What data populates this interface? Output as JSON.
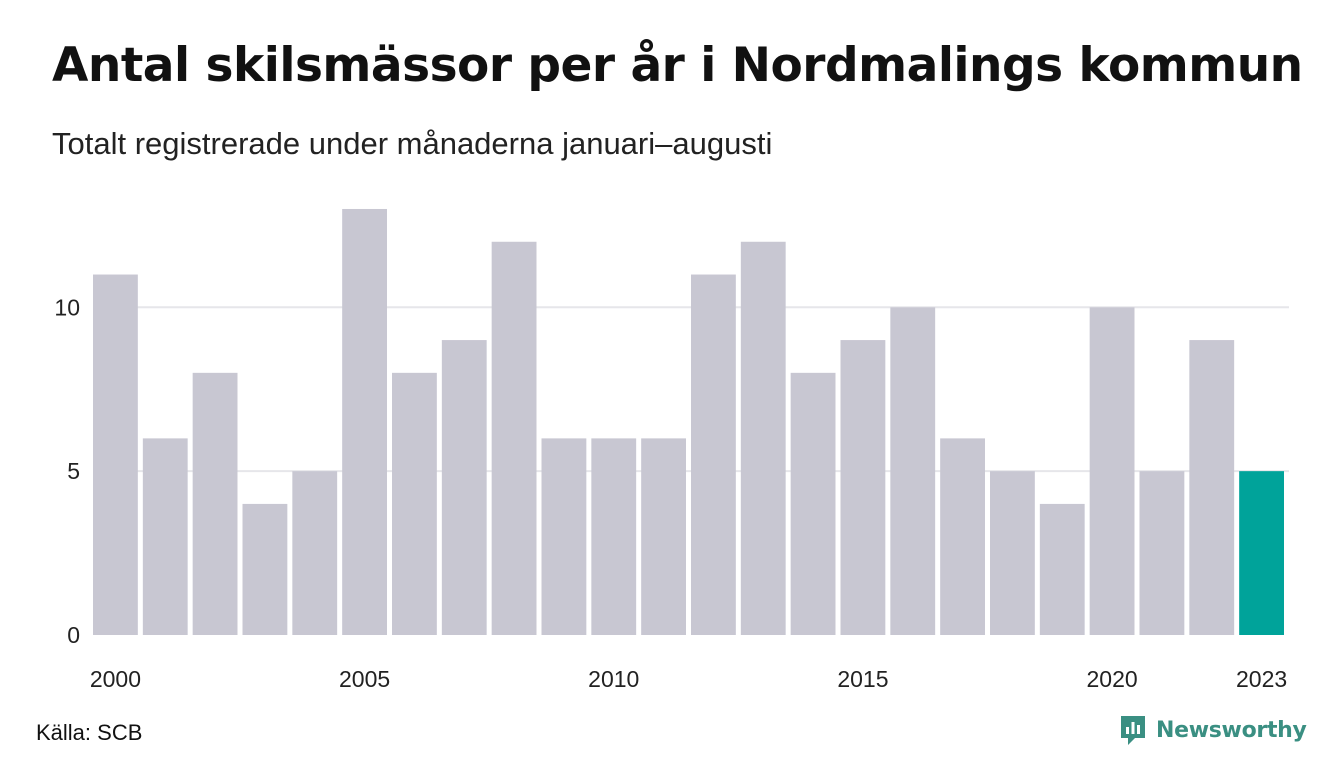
{
  "title": "Antal skilsmässor per år i Nordmalings kommun",
  "subtitle": "Totalt registrerade under månaderna januari–augusti",
  "source": "Källa: SCB",
  "brand": "Newsworthy",
  "colors": {
    "bar": "#c8c7d2",
    "highlight": "#00a39a",
    "grid": "#e6e6ea",
    "brand": "#3a8f82"
  },
  "chart_data": {
    "type": "bar",
    "categories": [
      "2000",
      "2001",
      "2002",
      "2003",
      "2004",
      "2005",
      "2006",
      "2007",
      "2008",
      "2009",
      "2010",
      "2011",
      "2012",
      "2013",
      "2014",
      "2015",
      "2016",
      "2017",
      "2018",
      "2019",
      "2020",
      "2021",
      "2022",
      "2023"
    ],
    "values": [
      11,
      6,
      8,
      4,
      5,
      13,
      8,
      9,
      12,
      6,
      6,
      6,
      11,
      12,
      8,
      9,
      10,
      6,
      5,
      4,
      10,
      5,
      9,
      5
    ],
    "highlight_index": 23,
    "x_tick_labels": [
      "2000",
      "2005",
      "2010",
      "2015",
      "2020",
      "2023"
    ],
    "y_ticks": [
      0,
      5,
      10
    ],
    "ylim": [
      0,
      13
    ],
    "grid": true,
    "xlabel": "",
    "ylabel": ""
  }
}
